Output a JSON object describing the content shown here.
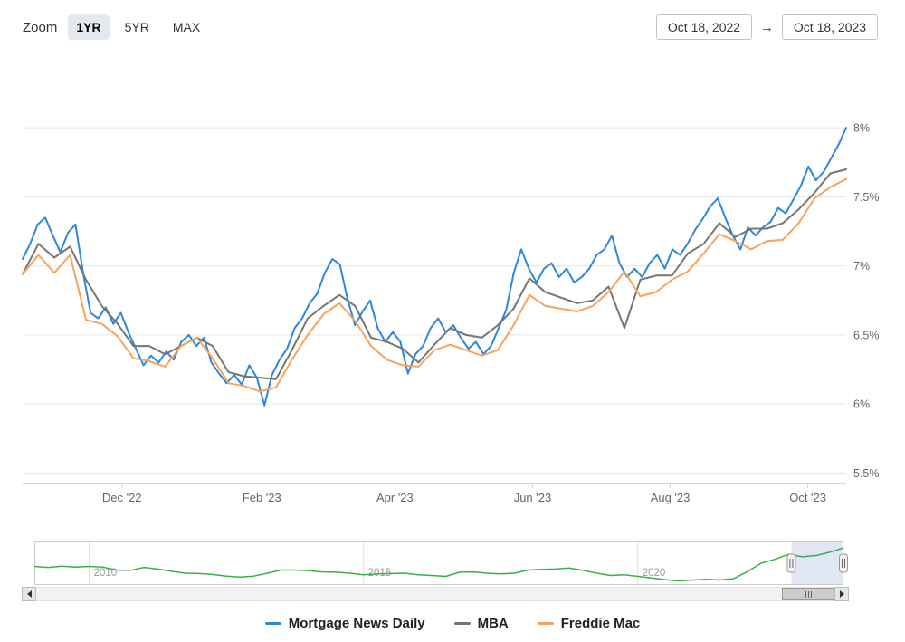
{
  "toolbar": {
    "zoom_label": "Zoom",
    "zoom_buttons": [
      {
        "label": "1YR",
        "selected": true
      },
      {
        "label": "5YR",
        "selected": false
      },
      {
        "label": "MAX",
        "selected": false
      }
    ],
    "date_from": "Oct 18, 2022",
    "date_arrow": "→",
    "date_to": "Oct 18, 2023"
  },
  "chart_data": {
    "type": "line",
    "title": "",
    "x_range_labels": [
      "Oct 18, 2022",
      "Oct 18, 2023"
    ],
    "x_axis": {
      "ticks": [
        {
          "label": "Dec '22",
          "day": 44
        },
        {
          "label": "Feb '23",
          "day": 106
        },
        {
          "label": "Apr '23",
          "day": 165
        },
        {
          "label": "Jun '23",
          "day": 226
        },
        {
          "label": "Aug '23",
          "day": 287
        },
        {
          "label": "Oct '23",
          "day": 348
        }
      ],
      "total_days": 365
    },
    "y_axis": {
      "lim": [
        5.43,
        8.5
      ],
      "ticks": [
        {
          "label": "8%",
          "value": 8.0
        },
        {
          "label": "7.5%",
          "value": 7.5
        },
        {
          "label": "7%",
          "value": 7.0
        },
        {
          "label": "6.5%",
          "value": 6.5
        },
        {
          "label": "6%",
          "value": 6.0
        },
        {
          "label": "5.5%",
          "value": 5.5
        }
      ]
    },
    "series": [
      {
        "name": "Mortgage News Daily",
        "color": "#2d87e0",
        "values": [
          7.05,
          7.16,
          7.3,
          7.35,
          7.22,
          7.1,
          7.24,
          7.3,
          6.95,
          6.66,
          6.62,
          6.7,
          6.58,
          6.66,
          6.52,
          6.4,
          6.28,
          6.35,
          6.3,
          6.38,
          6.32,
          6.45,
          6.5,
          6.42,
          6.48,
          6.3,
          6.22,
          6.15,
          6.21,
          6.14,
          6.28,
          6.19,
          5.99,
          6.21,
          6.32,
          6.4,
          6.55,
          6.62,
          6.73,
          6.8,
          6.95,
          7.05,
          7.01,
          6.76,
          6.57,
          6.67,
          6.75,
          6.55,
          6.45,
          6.52,
          6.45,
          6.22,
          6.36,
          6.42,
          6.55,
          6.62,
          6.52,
          6.57,
          6.48,
          6.4,
          6.45,
          6.36,
          6.42,
          6.55,
          6.68,
          6.95,
          7.12,
          6.98,
          6.88,
          6.98,
          7.02,
          6.92,
          6.98,
          6.88,
          6.92,
          6.98,
          7.08,
          7.12,
          7.22,
          7.02,
          6.92,
          6.98,
          6.92,
          7.02,
          7.08,
          6.98,
          7.12,
          7.08,
          7.16,
          7.26,
          7.34,
          7.43,
          7.49,
          7.35,
          7.22,
          7.12,
          7.28,
          7.22,
          7.28,
          7.32,
          7.42,
          7.38,
          7.48,
          7.58,
          7.72,
          7.62,
          7.68,
          7.78,
          7.88,
          8.0
        ]
      },
      {
        "name": "MBA",
        "color": "#757575",
        "values": [
          6.94,
          7.16,
          7.06,
          7.14,
          6.9,
          6.71,
          6.58,
          6.42,
          6.42,
          6.36,
          6.42,
          6.48,
          6.42,
          6.23,
          6.2,
          6.19,
          6.18,
          6.39,
          6.62,
          6.71,
          6.79,
          6.71,
          6.48,
          6.45,
          6.4,
          6.3,
          6.43,
          6.55,
          6.5,
          6.48,
          6.57,
          6.69,
          6.91,
          6.81,
          6.77,
          6.73,
          6.75,
          6.85,
          6.55,
          6.9,
          6.93,
          6.93,
          7.09,
          7.16,
          7.31,
          7.21,
          7.27,
          7.27,
          7.31,
          7.41,
          7.53,
          7.67,
          7.7
        ]
      },
      {
        "name": "Freddie Mac",
        "color": "#f7a35c",
        "values": [
          6.94,
          7.08,
          6.95,
          7.08,
          6.61,
          6.58,
          6.49,
          6.33,
          6.31,
          6.27,
          6.42,
          6.48,
          6.33,
          6.15,
          6.13,
          6.09,
          6.12,
          6.32,
          6.5,
          6.65,
          6.73,
          6.6,
          6.42,
          6.32,
          6.28,
          6.27,
          6.39,
          6.43,
          6.39,
          6.35,
          6.39,
          6.57,
          6.79,
          6.71,
          6.69,
          6.67,
          6.71,
          6.81,
          6.96,
          6.78,
          6.81,
          6.9,
          6.96,
          7.09,
          7.23,
          7.18,
          7.12,
          7.18,
          7.19,
          7.31,
          7.49,
          7.57,
          7.63
        ]
      }
    ]
  },
  "navigator": {
    "x_range": [
      2009,
      2023.75
    ],
    "ylim": [
      2.4,
      8.6
    ],
    "color": "#3bb143",
    "x_ticks": [
      {
        "label": "2010",
        "year": 2010
      },
      {
        "label": "2015",
        "year": 2015
      },
      {
        "label": "2020",
        "year": 2020
      }
    ],
    "values": [
      5.0,
      4.85,
      5.05,
      4.9,
      5.0,
      4.9,
      4.45,
      4.4,
      4.85,
      4.6,
      4.25,
      3.95,
      3.9,
      3.75,
      3.5,
      3.35,
      3.5,
      3.95,
      4.45,
      4.45,
      4.35,
      4.15,
      4.1,
      3.95,
      3.7,
      3.85,
      3.9,
      3.95,
      3.7,
      3.6,
      3.45,
      4.1,
      4.15,
      3.95,
      3.85,
      3.95,
      4.45,
      4.55,
      4.6,
      4.75,
      4.4,
      3.95,
      3.6,
      3.7,
      3.45,
      3.2,
      2.95,
      2.75,
      2.9,
      3.0,
      2.9,
      3.1,
      4.2,
      5.5,
      6.1,
      6.9,
      6.5,
      6.7,
      7.2,
      7.9
    ],
    "selection": {
      "from": 2022.8,
      "to": 2023.75
    }
  },
  "legend": {
    "items": [
      {
        "label": "Mortgage News Daily",
        "color": "#2d87e0"
      },
      {
        "label": "MBA",
        "color": "#757575"
      },
      {
        "label": "Freddie Mac",
        "color": "#f7a35c"
      }
    ]
  }
}
